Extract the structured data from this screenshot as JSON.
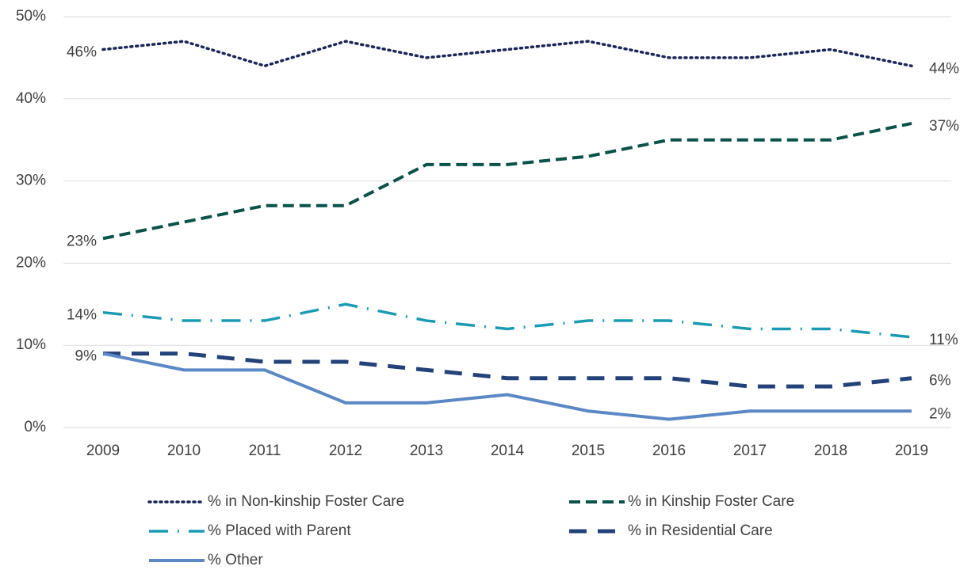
{
  "chart_data": {
    "type": "line",
    "categories": [
      "2009",
      "2010",
      "2011",
      "2012",
      "2013",
      "2014",
      "2015",
      "2016",
      "2017",
      "2018",
      "2019"
    ],
    "ylim": [
      0,
      50
    ],
    "yticks": [
      {
        "value": 0,
        "label": "0%"
      },
      {
        "value": 10,
        "label": "10%"
      },
      {
        "value": 20,
        "label": "20%"
      },
      {
        "value": 30,
        "label": "30%"
      },
      {
        "value": 40,
        "label": "40%"
      },
      {
        "value": 50,
        "label": "50%"
      }
    ],
    "grid": true,
    "legend": "bottom",
    "series": [
      {
        "name": "% in Non-kinship Foster Care",
        "color": "#1c2557",
        "dash": "dot",
        "values": [
          46,
          47,
          44,
          47,
          45,
          46,
          47,
          45,
          45,
          46,
          44
        ],
        "value_labels": [
          "46%",
          null,
          null,
          null,
          null,
          null,
          null,
          null,
          null,
          null,
          "44%"
        ]
      },
      {
        "name": "% in Kinship Foster Care",
        "color": "#0b5249",
        "dash": "dash",
        "values": [
          23,
          25,
          27,
          27,
          32,
          32,
          33,
          35,
          35,
          35,
          37
        ],
        "value_labels": [
          "23%",
          null,
          null,
          null,
          null,
          null,
          null,
          null,
          null,
          null,
          "37%"
        ]
      },
      {
        "name": "% Placed with Parent",
        "color": "#1b9ab3",
        "dash": "dashdot",
        "values": [
          14,
          13,
          13,
          15,
          13,
          12,
          13,
          13,
          12,
          12,
          11
        ],
        "value_labels": [
          "14%",
          null,
          null,
          null,
          null,
          null,
          null,
          null,
          null,
          null,
          "11%"
        ]
      },
      {
        "name": "% in Residential Care",
        "color": "#24427a",
        "dash": "longdash",
        "values": [
          9,
          9,
          8,
          8,
          7,
          6,
          6,
          6,
          5,
          5,
          6
        ],
        "value_labels": [
          null,
          null,
          null,
          null,
          null,
          null,
          null,
          null,
          null,
          null,
          "6%"
        ]
      },
      {
        "name": "% Other",
        "color": "#5b88c4",
        "dash": "solid",
        "values": [
          9,
          7,
          7,
          3,
          3,
          4,
          2,
          1,
          2,
          2,
          2
        ],
        "value_labels": [
          "9%",
          null,
          null,
          null,
          null,
          null,
          null,
          null,
          null,
          null,
          "2%"
        ]
      }
    ]
  }
}
